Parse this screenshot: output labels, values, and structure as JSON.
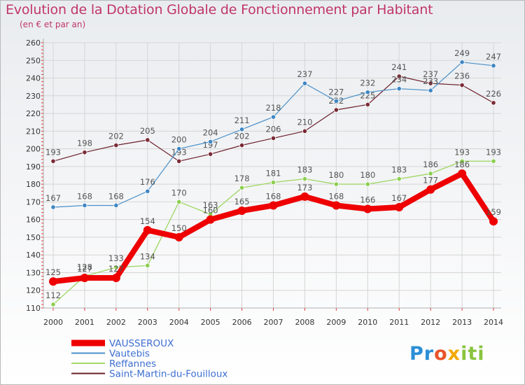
{
  "title": "Evolution de la Dotation Globale de Fonctionnement par Habitant",
  "subtitle": "(en € et par an)",
  "logo": {
    "p1": "Pr",
    "p2": "o",
    "p3": "x",
    "p4": "iti"
  },
  "colors": {
    "title": "#c0356a",
    "legend_text": "#3d6fd0",
    "grid": "#d5d5d5",
    "axis": "#b0b0b0",
    "axis_tick": "#e04040",
    "label_text": "#555555"
  },
  "chart_data": {
    "type": "line",
    "title": "Evolution de la Dotation Globale de Fonctionnement par Habitant",
    "subtitle": "(en € et par an)",
    "xlabel": "",
    "ylabel": "",
    "x": [
      "2000",
      "2001",
      "2002",
      "2003",
      "2004",
      "2005",
      "2006",
      "2007",
      "2008",
      "2009",
      "2010",
      "2011",
      "2012",
      "2013",
      "2014"
    ],
    "ylim": [
      110,
      260
    ],
    "yticks": [
      110,
      120,
      130,
      140,
      150,
      160,
      170,
      180,
      190,
      200,
      210,
      220,
      230,
      240,
      250,
      260
    ],
    "grid": true,
    "legend_position": "bottom-left",
    "series": [
      {
        "name": "Saint-Martin-du-Fouilloux",
        "color": "#6b1f2a",
        "marker": "#7a2a35",
        "width": 1.2,
        "radius": 3.2,
        "values": [
          193,
          198,
          202,
          205,
          193,
          197,
          202,
          206,
          210,
          222,
          225,
          241,
          237,
          236,
          226
        ]
      },
      {
        "name": "Vautebis",
        "color": "#4a90c8",
        "marker": "#3f86c3",
        "width": 1.2,
        "radius": 3.2,
        "values": [
          167,
          168,
          168,
          176,
          200,
          204,
          211,
          218,
          237,
          227,
          232,
          234,
          233,
          249,
          247
        ]
      },
      {
        "name": "Reffannes",
        "color": "#a2d86a",
        "marker": "#8ccf4f",
        "width": 1.4,
        "radius": 3.2,
        "values": [
          112,
          128,
          133,
          134,
          170,
          163,
          178,
          181,
          183,
          180,
          180,
          183,
          186,
          193,
          193
        ]
      },
      {
        "name": "VAUSSEROUX",
        "color": "#ee0000",
        "marker": "#ee0000",
        "width": 8,
        "radius": 6,
        "values": [
          125,
          127,
          127,
          154,
          150,
          160,
          165,
          168,
          173,
          168,
          166,
          167,
          177,
          186,
          159
        ]
      }
    ],
    "legend": [
      "VAUSSEROUX",
      "Vautebis",
      "Reffannes",
      "Saint-Martin-du-Fouilloux"
    ]
  }
}
